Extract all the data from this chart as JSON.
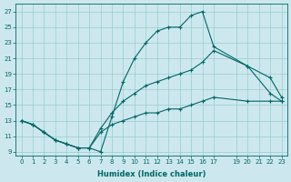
{
  "xlabel": "Humidex (Indice chaleur)",
  "bg_color": "#cce8ee",
  "grid_color": "#99cccc",
  "line_color": "#006666",
  "xlim": [
    -0.5,
    23.5
  ],
  "ylim": [
    8.5,
    28
  ],
  "yticks": [
    9,
    11,
    13,
    15,
    17,
    19,
    21,
    23,
    25,
    27
  ],
  "xticks": [
    0,
    1,
    2,
    3,
    4,
    5,
    6,
    7,
    8,
    9,
    10,
    11,
    12,
    13,
    14,
    15,
    16,
    17,
    19,
    20,
    21,
    22,
    23
  ],
  "line_max": {
    "x": [
      0,
      1,
      2,
      3,
      4,
      5,
      6,
      7,
      8,
      9,
      10,
      11,
      12,
      13,
      14,
      15,
      16,
      17,
      20,
      22,
      23
    ],
    "y": [
      13,
      12.5,
      11.5,
      10.5,
      10.0,
      9.5,
      9.5,
      9.0,
      13.5,
      18.0,
      21.0,
      23.0,
      24.5,
      25.0,
      25.0,
      26.5,
      27.0,
      22.5,
      20.0,
      16.5,
      15.5
    ]
  },
  "line_mid": {
    "x": [
      0,
      1,
      2,
      3,
      4,
      5,
      6,
      7,
      8,
      9,
      10,
      11,
      12,
      13,
      14,
      15,
      16,
      17,
      20,
      22,
      23
    ],
    "y": [
      13,
      12.5,
      11.5,
      10.5,
      10.0,
      9.5,
      9.5,
      12.0,
      14.0,
      15.5,
      16.5,
      17.5,
      18.0,
      18.5,
      19.0,
      19.5,
      20.5,
      22.0,
      20.0,
      18.5,
      16.0
    ]
  },
  "line_min": {
    "x": [
      0,
      1,
      2,
      3,
      4,
      5,
      6,
      7,
      8,
      9,
      10,
      11,
      12,
      13,
      14,
      15,
      16,
      17,
      20,
      22,
      23
    ],
    "y": [
      13,
      12.5,
      11.5,
      10.5,
      10.0,
      9.5,
      9.5,
      11.5,
      12.5,
      13.0,
      13.5,
      14.0,
      14.0,
      14.5,
      14.5,
      15.0,
      15.5,
      16.0,
      15.5,
      15.5,
      15.5
    ]
  }
}
